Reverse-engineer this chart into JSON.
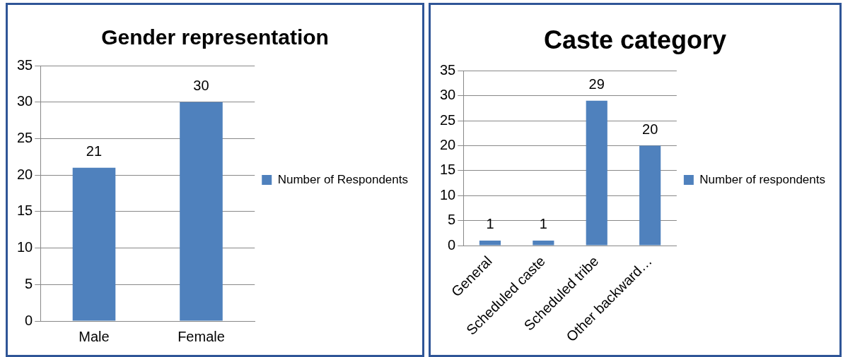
{
  "chart_data": [
    {
      "type": "bar",
      "title": "Gender representation",
      "categories": [
        "Male",
        "Female"
      ],
      "series": [
        {
          "name": "Number of Respondents",
          "color": "#4f81bd",
          "values": [
            21,
            30
          ]
        }
      ],
      "ylim": [
        0,
        35
      ],
      "yticks": [
        0,
        5,
        10,
        15,
        20,
        25,
        30,
        35
      ],
      "grid": "y",
      "legend": "right",
      "data_labels": true
    },
    {
      "type": "bar",
      "title": "Caste category",
      "categories": [
        "General",
        "Scheduled caste",
        "Scheduled tribe",
        "Other backward…"
      ],
      "series": [
        {
          "name": "Number of respondents",
          "color": "#4f81bd",
          "values": [
            1,
            1,
            29,
            20
          ]
        }
      ],
      "ylim": [
        0,
        35
      ],
      "yticks": [
        0,
        5,
        10,
        15,
        20,
        25,
        30,
        35
      ],
      "grid": "y",
      "legend": "right",
      "data_labels": true
    }
  ]
}
